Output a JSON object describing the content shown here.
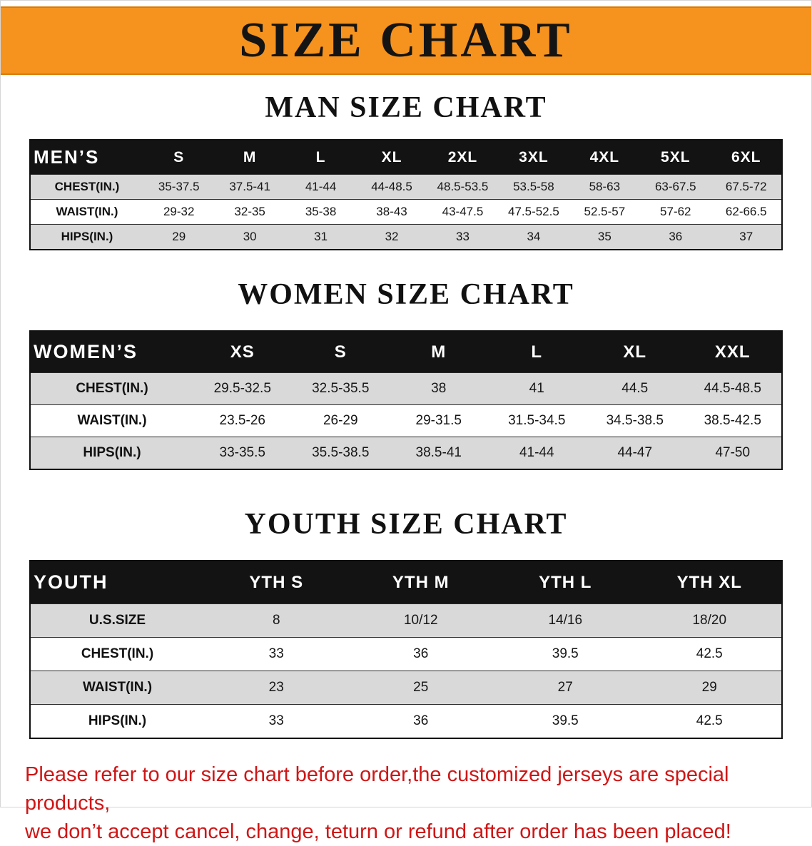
{
  "banner": {
    "title": "SIZE CHART",
    "bg_color": "#f6921e",
    "text_color": "#141414"
  },
  "colors": {
    "table_header_bg": "#131313",
    "table_row_alt_bg": "#d9d9d9",
    "footer_text": "#cf1616"
  },
  "men": {
    "heading": "MAN SIZE CHART",
    "table": {
      "header_label": "MEN’S",
      "columns": [
        "S",
        "M",
        "L",
        "XL",
        "2XL",
        "3XL",
        "4XL",
        "5XL",
        "6XL"
      ],
      "rows": [
        {
          "label": "CHEST(IN.)",
          "values": [
            "35-37.5",
            "37.5-41",
            "41-44",
            "44-48.5",
            "48.5-53.5",
            "53.5-58",
            "58-63",
            "63-67.5",
            "67.5-72"
          ]
        },
        {
          "label": "WAIST(IN.)",
          "values": [
            "29-32",
            "32-35",
            "35-38",
            "38-43",
            "43-47.5",
            "47.5-52.5",
            "52.5-57",
            "57-62",
            "62-66.5"
          ]
        },
        {
          "label": "HIPS(IN.)",
          "values": [
            "29",
            "30",
            "31",
            "32",
            "33",
            "34",
            "35",
            "36",
            "37"
          ]
        }
      ]
    }
  },
  "women": {
    "heading": "WOMEN SIZE CHART",
    "table": {
      "header_label": "WOMEN’S",
      "columns": [
        "XS",
        "S",
        "M",
        "L",
        "XL",
        "XXL"
      ],
      "rows": [
        {
          "label": "CHEST(IN.)",
          "values": [
            "29.5-32.5",
            "32.5-35.5",
            "38",
            "41",
            "44.5",
            "44.5-48.5"
          ]
        },
        {
          "label": "WAIST(IN.)",
          "values": [
            "23.5-26",
            "26-29",
            "29-31.5",
            "31.5-34.5",
            "34.5-38.5",
            "38.5-42.5"
          ]
        },
        {
          "label": "HIPS(IN.)",
          "values": [
            "33-35.5",
            "35.5-38.5",
            "38.5-41",
            "41-44",
            "44-47",
            "47-50"
          ]
        }
      ]
    }
  },
  "youth": {
    "heading": "YOUTH SIZE CHART",
    "table": {
      "header_label": "YOUTH",
      "columns": [
        "YTH S",
        "YTH M",
        "YTH L",
        "YTH XL"
      ],
      "rows": [
        {
          "label": "U.S.SIZE",
          "values": [
            "8",
            "10/12",
            "14/16",
            "18/20"
          ]
        },
        {
          "label": "CHEST(IN.)",
          "values": [
            "33",
            "36",
            "39.5",
            "42.5"
          ]
        },
        {
          "label": "WAIST(IN.)",
          "values": [
            "23",
            "25",
            "27",
            "29"
          ]
        },
        {
          "label": "HIPS(IN.)",
          "values": [
            "33",
            "36",
            "39.5",
            "42.5"
          ]
        }
      ]
    }
  },
  "footer": {
    "lines": [
      "Please refer to our size chart before order,the customized jerseys are special products,",
      "we don’t accept cancel, change, teturn or refund after order has been placed!"
    ]
  }
}
